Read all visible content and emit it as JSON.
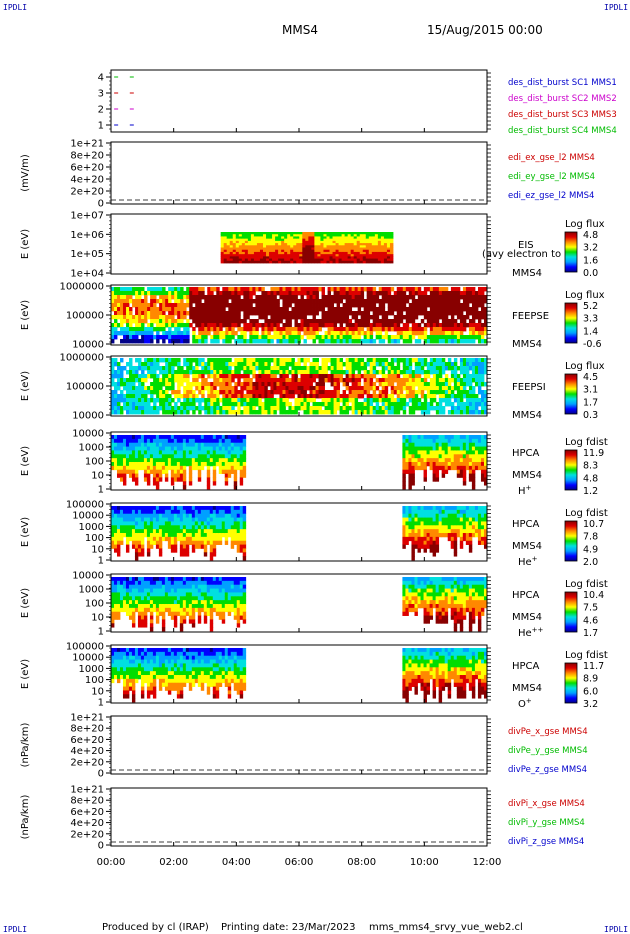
{
  "header": {
    "corner_tl": "IPDLI",
    "corner_tr": "IPDLI",
    "corner_bl": "IPDLI",
    "corner_br": "IPDLI",
    "spacecraft": "MMS4",
    "date": "15/Aug/2015 00:00"
  },
  "footer": {
    "produced_by": "Produced by cl (IRAP)",
    "printing_date": "Printing date: 23/Mar/2023",
    "script_name": "mms_mms4_srvy_vue_web2.cl"
  },
  "colors": {
    "frame": "#000000",
    "red": "#cc0000",
    "green": "#00bb00",
    "blue": "#0000cc",
    "magenta": "#cc00cc",
    "colorbar": [
      "#000088",
      "#0000ff",
      "#00a0ff",
      "#00e0e0",
      "#00dd00",
      "#ffff00",
      "#ff8800",
      "#dd0000",
      "#880000"
    ]
  },
  "chart_data": [
    {
      "type": "line",
      "panel": "burst-flags",
      "yticks": [
        "4",
        "3",
        "2",
        "1"
      ],
      "legend": [
        {
          "label": "des_dist_burst SC1 MMS1",
          "color": "#0000cc"
        },
        {
          "label": "des_dist_burst SC2 MMS2",
          "color": "#cc00cc"
        },
        {
          "label": "des_dist_burst SC3 MMS3",
          "color": "#cc0000"
        },
        {
          "label": "des_dist_burst SC4 MMS4",
          "color": "#00bb00"
        }
      ],
      "series": [
        {
          "name": "des_dist_burst SC4 MMS4",
          "y": 4,
          "x": [
            0.1,
            0.6
          ]
        },
        {
          "name": "des_dist_burst SC3 MMS3",
          "y": 3,
          "x": [
            0.1,
            0.6
          ]
        },
        {
          "name": "des_dist_burst SC2 MMS2",
          "y": 2,
          "x": [
            0.1,
            0.6
          ]
        },
        {
          "name": "des_dist_burst SC1 MMS1",
          "y": 1,
          "x": [
            0.1,
            0.6
          ]
        }
      ]
    },
    {
      "type": "line",
      "panel": "edi-e-field",
      "ylabel": "(mV/m)",
      "yticks": [
        "1e+21",
        "8e+20",
        "6e+20",
        "4e+20",
        "2e+20",
        "0"
      ],
      "legend": [
        {
          "label": "edi_ex_gse_l2 MMS4",
          "color": "#cc0000"
        },
        {
          "label": "edi_ey_gse_l2 MMS4",
          "color": "#00bb00"
        },
        {
          "label": "edi_ez_gse_l2 MMS4",
          "color": "#0000cc"
        }
      ],
      "zero_line": true
    },
    {
      "type": "heatmap",
      "panel": "eis",
      "ylabel": "E (eV)",
      "yticks": [
        "1e+07",
        "1e+06",
        "1e+05",
        "1e+04"
      ],
      "instrument": "EIS",
      "overlay_text": "(avy electron to",
      "spacecraft": "MMS4",
      "colorbar_title": "Log flux",
      "colorbar_ticks": [
        "4.8",
        "3.2",
        "1.6",
        "0.0"
      ],
      "data_x_range_hours": [
        3.5,
        9.0
      ]
    },
    {
      "type": "heatmap",
      "panel": "feepse",
      "ylabel": "E (eV)",
      "yticks": [
        "1000000",
        "100000",
        "10000"
      ],
      "instrument": "FEEPSE",
      "spacecraft": "MMS4",
      "colorbar_title": "Log flux",
      "colorbar_ticks": [
        "5.2",
        "3.3",
        "1.4",
        "-0.6"
      ],
      "data_x_range_hours": [
        0.0,
        12.0
      ]
    },
    {
      "type": "heatmap",
      "panel": "feepsi",
      "ylabel": "E (eV)",
      "yticks": [
        "1000000",
        "100000",
        "10000"
      ],
      "instrument": "FEEPSI",
      "spacecraft": "MMS4",
      "colorbar_title": "Log flux",
      "colorbar_ticks": [
        "4.5",
        "3.1",
        "1.7",
        "0.3"
      ],
      "data_x_range_hours": [
        0.0,
        12.0
      ]
    },
    {
      "type": "heatmap",
      "panel": "hpca-h",
      "ylabel": "E (eV)",
      "yticks": [
        "10000",
        "1000",
        "100",
        "10",
        "1"
      ],
      "instrument": "HPCA",
      "spacecraft": "MMS4",
      "species": "H",
      "species_sup": "+",
      "colorbar_title": "Log fdist",
      "colorbar_ticks": [
        "11.9",
        "8.3",
        "4.8",
        "1.2"
      ],
      "data_x_ranges_hours": [
        [
          0.0,
          4.3
        ],
        [
          9.3,
          12.0
        ]
      ]
    },
    {
      "type": "heatmap",
      "panel": "hpca-he",
      "ylabel": "E (eV)",
      "yticks": [
        "100000",
        "10000",
        "1000",
        "100",
        "10",
        "1"
      ],
      "instrument": "HPCA",
      "spacecraft": "MMS4",
      "species": "He",
      "species_sup": "+",
      "colorbar_title": "Log fdist",
      "colorbar_ticks": [
        "10.7",
        "7.8",
        "4.9",
        "2.0"
      ],
      "data_x_ranges_hours": [
        [
          0.0,
          4.3
        ],
        [
          9.3,
          12.0
        ]
      ]
    },
    {
      "type": "heatmap",
      "panel": "hpca-he2",
      "ylabel": "E (eV)",
      "yticks": [
        "10000",
        "1000",
        "100",
        "10",
        "1"
      ],
      "instrument": "HPCA",
      "spacecraft": "MMS4",
      "species": "He",
      "species_sup": "++",
      "colorbar_title": "Log fdist",
      "colorbar_ticks": [
        "10.4",
        "7.5",
        "4.6",
        "1.7"
      ],
      "data_x_ranges_hours": [
        [
          0.0,
          4.3
        ],
        [
          9.3,
          12.0
        ]
      ]
    },
    {
      "type": "heatmap",
      "panel": "hpca-o",
      "ylabel": "E (eV)",
      "yticks": [
        "100000",
        "10000",
        "1000",
        "100",
        "10",
        "1"
      ],
      "instrument": "HPCA",
      "spacecraft": "MMS4",
      "species": "O",
      "species_sup": "+",
      "colorbar_title": "Log fdist",
      "colorbar_ticks": [
        "11.7",
        "8.9",
        "6.0",
        "3.2"
      ],
      "data_x_ranges_hours": [
        [
          0.0,
          4.3
        ],
        [
          9.3,
          12.0
        ]
      ]
    },
    {
      "type": "line",
      "panel": "dive-pe",
      "ylabel": "(nPa/km)",
      "yticks": [
        "1e+21",
        "8e+20",
        "6e+20",
        "4e+20",
        "2e+20",
        "0"
      ],
      "legend": [
        {
          "label": "divPe_x_gse MMS4",
          "color": "#cc0000"
        },
        {
          "label": "divPe_y_gse MMS4",
          "color": "#00bb00"
        },
        {
          "label": "divPe_z_gse MMS4",
          "color": "#0000cc"
        }
      ],
      "zero_line": true
    },
    {
      "type": "line",
      "panel": "dive-pi",
      "ylabel": "(nPa/km)",
      "yticks": [
        "1e+21",
        "8e+20",
        "6e+20",
        "4e+20",
        "2e+20",
        "0"
      ],
      "legend": [
        {
          "label": "divPi_x_gse MMS4",
          "color": "#cc0000"
        },
        {
          "label": "divPi_y_gse MMS4",
          "color": "#00bb00"
        },
        {
          "label": "divPi_z_gse MMS4",
          "color": "#0000cc"
        }
      ],
      "zero_line": true
    }
  ],
  "x_axis": {
    "range_hours": [
      0,
      12
    ],
    "tick_labels": [
      "00:00",
      "02:00",
      "04:00",
      "06:00",
      "08:00",
      "10:00",
      "12:00"
    ]
  }
}
